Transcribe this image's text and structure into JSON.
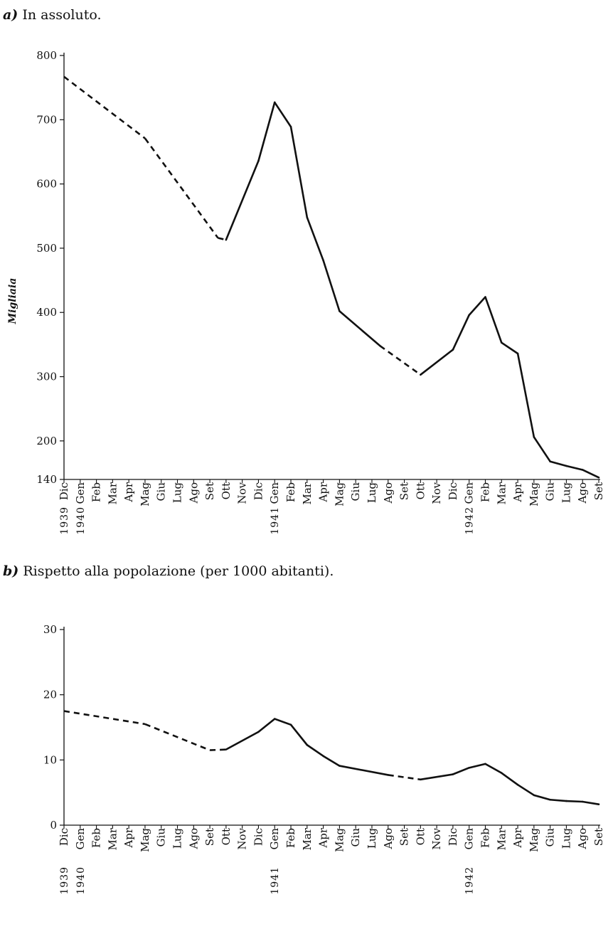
{
  "chart_data": [
    {
      "type": "line",
      "panel": "a",
      "caption_letter": "a)",
      "caption_text": "In assoluto.",
      "ylabel": "Migliaia",
      "ylim": [
        140,
        800
      ],
      "yticks": [
        "140",
        "200",
        "300",
        "400",
        "500",
        "600",
        "700",
        "800"
      ],
      "grid": false,
      "months": [
        "Dic",
        "Gen",
        "Feb",
        "Mar",
        "Apr",
        "Mag",
        "Giu",
        "Lug",
        "Ago",
        "Set",
        "Ott",
        "Nov",
        "Dic",
        "Gen",
        "Feb",
        "Mar",
        "Apr",
        "Mag",
        "Giu",
        "Lug",
        "Ago",
        "Set",
        "Ott",
        "Nov",
        "Dic",
        "Gen",
        "Feb",
        "Mar",
        "Apr",
        "Mag",
        "Giu",
        "Lug",
        "Ago",
        "Set"
      ],
      "years": [
        {
          "label": "1939",
          "index": 0
        },
        {
          "label": "1940",
          "index": 1
        },
        {
          "label": "1941",
          "index": 13
        },
        {
          "label": "1942",
          "index": 25
        }
      ],
      "series": [
        {
          "line_styles": [
            "dashed",
            "solid"
          ],
          "points": [
            {
              "i": 0,
              "v": 767,
              "s": "dashed"
            },
            {
              "i": 5,
              "v": 671,
              "s": "dashed"
            },
            {
              "i": 9.5,
              "v": 516,
              "s": "dashed"
            },
            {
              "i": 10,
              "v": 513,
              "s": "solid"
            },
            {
              "i": 12,
              "v": 636,
              "s": "solid"
            },
            {
              "i": 13,
              "v": 727,
              "s": "solid"
            },
            {
              "i": 14,
              "v": 689,
              "s": "solid"
            },
            {
              "i": 15,
              "v": 548,
              "s": "solid"
            },
            {
              "i": 16,
              "v": 481,
              "s": "solid"
            },
            {
              "i": 17,
              "v": 402,
              "s": "solid"
            },
            {
              "i": 19.5,
              "v": 348,
              "s": "dashed"
            },
            {
              "i": 22,
              "v": 303,
              "s": "solid"
            },
            {
              "i": 24,
              "v": 342,
              "s": "solid"
            },
            {
              "i": 25,
              "v": 396,
              "s": "solid"
            },
            {
              "i": 26,
              "v": 424,
              "s": "solid"
            },
            {
              "i": 27,
              "v": 353,
              "s": "solid"
            },
            {
              "i": 28,
              "v": 336,
              "s": "solid"
            },
            {
              "i": 29,
              "v": 206,
              "s": "solid"
            },
            {
              "i": 30,
              "v": 168,
              "s": "solid"
            },
            {
              "i": 31,
              "v": 161,
              "s": "solid"
            },
            {
              "i": 32,
              "v": 155,
              "s": "solid"
            },
            {
              "i": 33,
              "v": 143,
              "s": "solid"
            }
          ]
        }
      ]
    },
    {
      "type": "line",
      "panel": "b",
      "caption_letter": "b)",
      "caption_text": "Rispetto alla popolazione (per 1000 abitanti).",
      "ylabel": "",
      "ylim": [
        0,
        30
      ],
      "yticks": [
        "0",
        "10",
        "20",
        "30"
      ],
      "grid": false,
      "months": [
        "Dic",
        "Gen",
        "Feb",
        "Mar",
        "Apr",
        "Mag",
        "Giu",
        "Lug",
        "Ago",
        "Set",
        "Ott",
        "Nov",
        "Dic",
        "Gen",
        "Feb",
        "Mar",
        "Apr",
        "Mag",
        "Giu",
        "Lug",
        "Ago",
        "Set",
        "Ott",
        "Nov",
        "Dic",
        "Gen",
        "Feb",
        "Mar",
        "Apr",
        "Mag",
        "Giu",
        "Lug",
        "Ago",
        "Set"
      ],
      "years": [
        {
          "label": "1939",
          "index": 0
        },
        {
          "label": "1940",
          "index": 1
        },
        {
          "label": "1941",
          "index": 13
        },
        {
          "label": "1942",
          "index": 25
        }
      ],
      "series": [
        {
          "line_styles": [
            "dashed",
            "solid"
          ],
          "points": [
            {
              "i": 0,
              "v": 17.5,
              "s": "dashed"
            },
            {
              "i": 5,
              "v": 15.5,
              "s": "dashed"
            },
            {
              "i": 9,
              "v": 11.5,
              "s": "dashed"
            },
            {
              "i": 10,
              "v": 11.6,
              "s": "solid"
            },
            {
              "i": 12,
              "v": 14.3,
              "s": "solid"
            },
            {
              "i": 13,
              "v": 16.3,
              "s": "solid"
            },
            {
              "i": 14,
              "v": 15.4,
              "s": "solid"
            },
            {
              "i": 15,
              "v": 12.3,
              "s": "solid"
            },
            {
              "i": 16,
              "v": 10.6,
              "s": "solid"
            },
            {
              "i": 17,
              "v": 9.1,
              "s": "solid"
            },
            {
              "i": 20,
              "v": 7.7,
              "s": "dashed"
            },
            {
              "i": 22,
              "v": 7.0,
              "s": "solid"
            },
            {
              "i": 24,
              "v": 7.8,
              "s": "solid"
            },
            {
              "i": 25,
              "v": 8.8,
              "s": "solid"
            },
            {
              "i": 26,
              "v": 9.4,
              "s": "solid"
            },
            {
              "i": 27,
              "v": 8.0,
              "s": "solid"
            },
            {
              "i": 28,
              "v": 6.2,
              "s": "solid"
            },
            {
              "i": 29,
              "v": 4.6,
              "s": "solid"
            },
            {
              "i": 30,
              "v": 3.9,
              "s": "solid"
            },
            {
              "i": 31,
              "v": 3.7,
              "s": "solid"
            },
            {
              "i": 32,
              "v": 3.6,
              "s": "solid"
            },
            {
              "i": 33,
              "v": 3.2,
              "s": "solid"
            }
          ]
        }
      ]
    }
  ]
}
